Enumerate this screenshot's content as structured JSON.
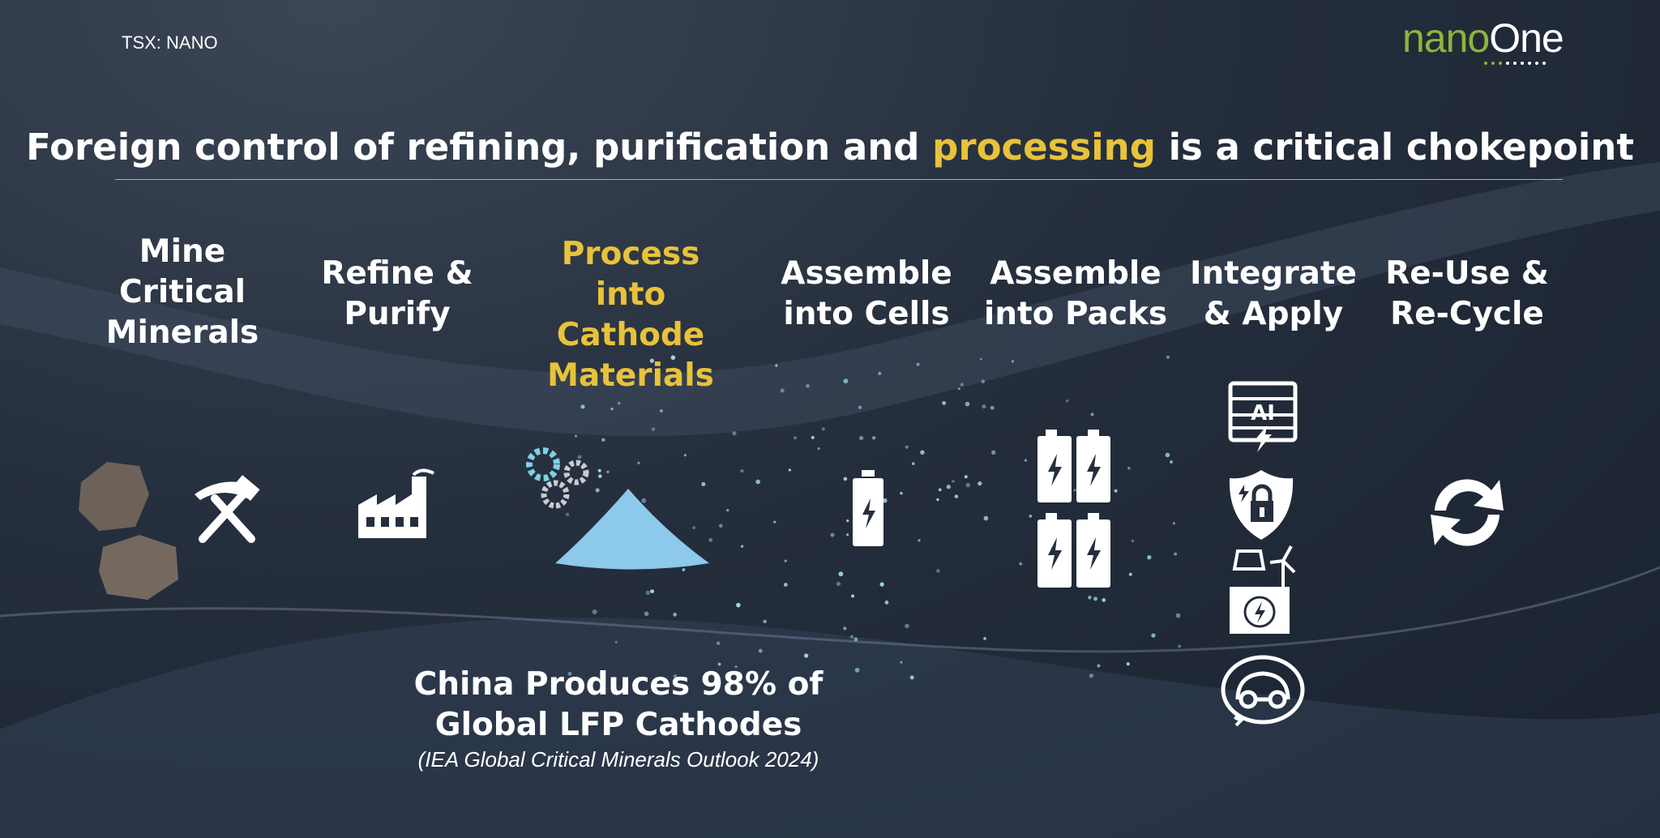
{
  "header": {
    "ticker": "TSX: NANO",
    "logo": {
      "part1": "nano",
      "part2": "One"
    }
  },
  "title": {
    "before": "Foreign control of refining, purification and ",
    "highlight": "processing",
    "after": " is a critical chokepoint"
  },
  "colors": {
    "highlight": "#e8c23a",
    "logo_green": "#8db53c",
    "background": "#252e3c"
  },
  "steps": [
    {
      "label": "Mine Critical Minerals",
      "icons": [
        "rock-icon",
        "hammer-pick-icon"
      ]
    },
    {
      "label": "Refine & Purify",
      "icons": [
        "factory-icon"
      ]
    },
    {
      "label": "Process into Cathode Materials",
      "icons": [
        "gears-icon",
        "powder-pile-icon"
      ],
      "highlighted": true
    },
    {
      "label": "Assemble into Cells",
      "icons": [
        "battery-icon"
      ]
    },
    {
      "label": "Assemble into Packs",
      "icons": [
        "battery-pack-icon"
      ]
    },
    {
      "label": "Integrate & Apply",
      "icons": [
        "ai-server-icon",
        "shield-lock-icon",
        "renewable-storage-icon",
        "electric-car-icon"
      ]
    },
    {
      "label": "Re-Use & Re-Cycle",
      "icons": [
        "recycle-icon"
      ]
    }
  ],
  "footer": {
    "line1": "China Produces 98% of",
    "line2": "Global LFP Cathodes",
    "citation": "(IEA Global Critical Minerals Outlook 2024)"
  },
  "ai_label": "AI"
}
